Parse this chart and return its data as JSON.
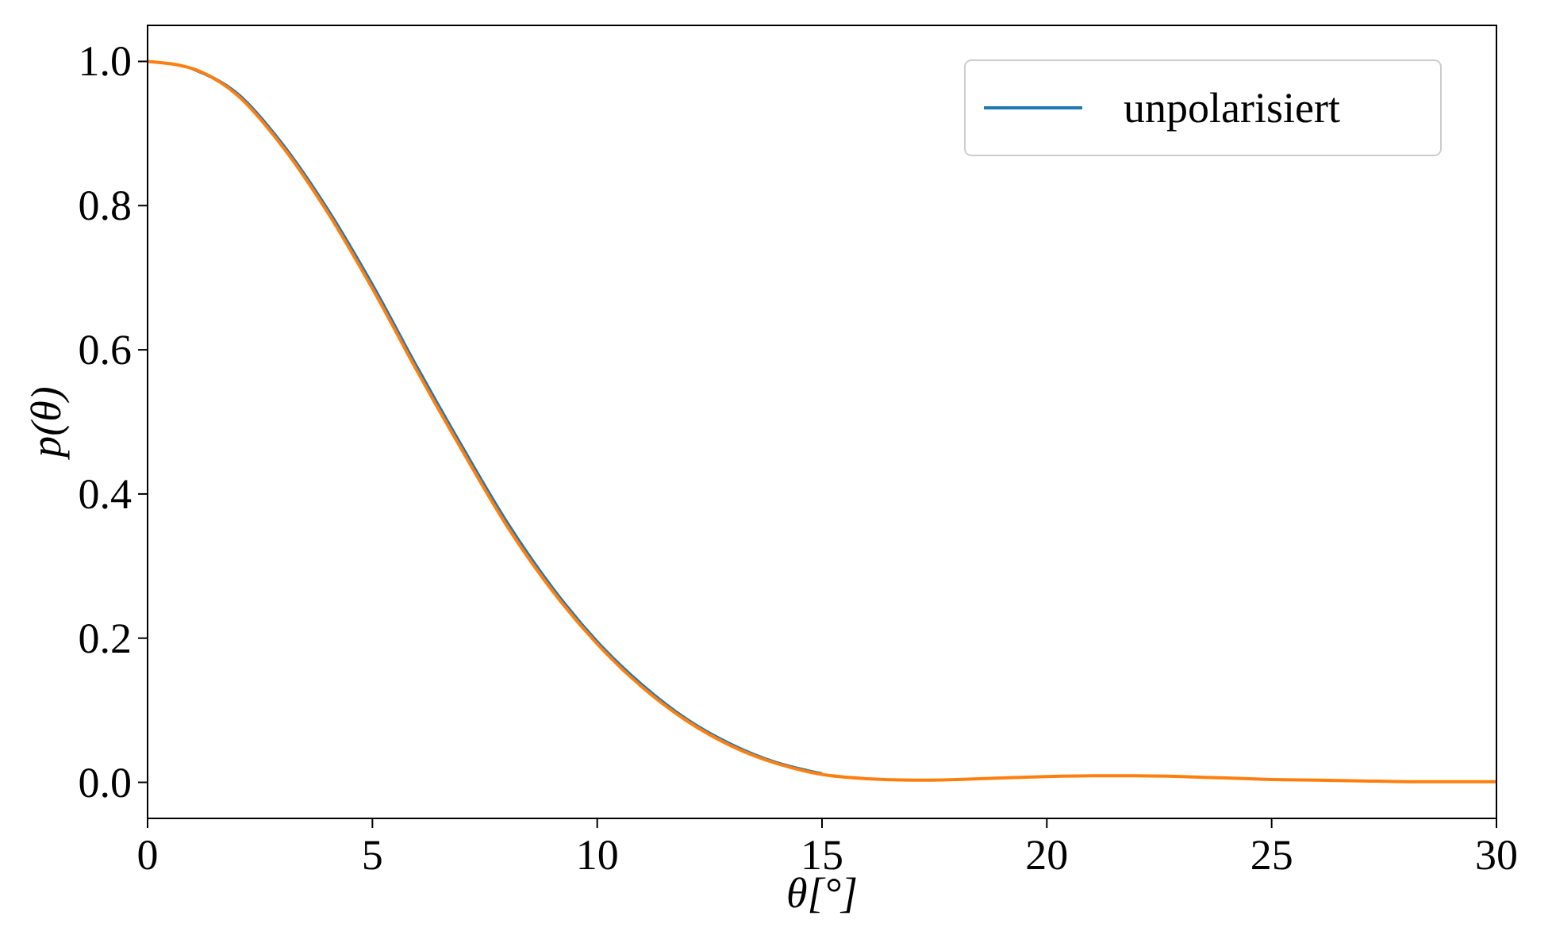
{
  "chart_data": {
    "type": "line",
    "xlabel": "θ[°]",
    "ylabel": "p(θ)",
    "x": [
      0,
      1,
      2,
      3,
      4,
      5,
      6,
      7,
      8,
      9,
      10,
      11,
      12,
      13,
      14,
      15,
      16,
      17,
      18,
      19,
      20,
      21,
      22,
      23,
      24,
      25,
      26,
      27,
      28,
      29,
      30
    ],
    "series": [
      {
        "name": "unpolarisiert",
        "color": "#1f77b4",
        "values": [
          null,
          0.99,
          0.955,
          0.885,
          0.795,
          0.69,
          0.575,
          0.465,
          0.36,
          0.27,
          0.195,
          0.135,
          0.087,
          0.052,
          0.027,
          0.012,
          null,
          null,
          null,
          null,
          null,
          null,
          null,
          null,
          null,
          null,
          null,
          null,
          null,
          null,
          null
        ]
      },
      {
        "color": "#ff7f0e",
        "values": [
          1.0,
          0.99,
          0.953,
          0.882,
          0.791,
          0.685,
          0.57,
          0.46,
          0.355,
          0.266,
          0.192,
          0.132,
          0.085,
          0.05,
          0.026,
          0.011,
          0.005,
          0.003,
          0.004,
          0.006,
          0.008,
          0.009,
          0.009,
          0.008,
          0.006,
          0.004,
          0.003,
          0.002,
          0.001,
          0.001,
          0.001
        ]
      }
    ],
    "xlim": [
      0,
      30
    ],
    "xticks": [
      0,
      5,
      10,
      15,
      20,
      25,
      30
    ],
    "ylim": [
      -0.05,
      1.05
    ],
    "yticks": [
      {
        "value": 0,
        "label": "0.0"
      },
      {
        "value": 0.2,
        "label": "0.2"
      },
      {
        "value": 0.4,
        "label": "0.4"
      },
      {
        "value": 0.6,
        "label": "0.6"
      },
      {
        "value": 0.8,
        "label": "0.8"
      },
      {
        "value": 1,
        "label": "1.0"
      }
    ],
    "grid": false,
    "legend": "top right",
    "marker": "none",
    "line_style": "solid"
  }
}
